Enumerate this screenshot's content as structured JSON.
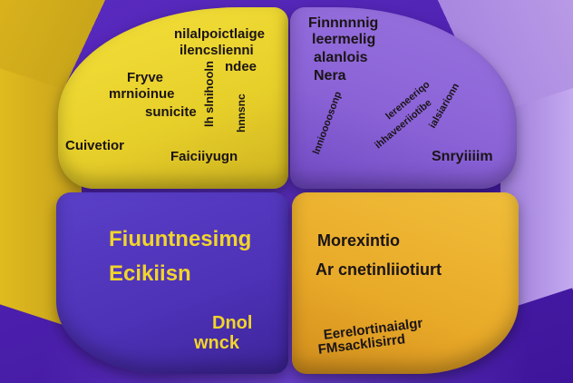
{
  "quadrants": {
    "top_left": {
      "color": "#eed732",
      "lines": {
        "a": "nilalpoictlaige",
        "b": "ilencslienni",
        "c": "ndee",
        "d": "Fryve",
        "e": "mrnioinue",
        "f": "sunicite",
        "g": "Cuivetior",
        "h": "Faiciiyugn",
        "v1": "lh slnihooln",
        "v2": "hnnsnc"
      }
    },
    "top_right": {
      "color": "#8d66d8",
      "lines": {
        "a": "Finnnnnig",
        "b": "leermelig",
        "c": "alanlois",
        "d": "Nera",
        "e": "Snryiiiim",
        "d1": "lnnioooosonp",
        "d2": "ihhaveeriiotibe",
        "d3": "lereneeriqo",
        "d4": "ialsiarionn"
      }
    },
    "bottom_left": {
      "color": "#4e33b8",
      "lines": {
        "a": "Fiuuntnesimg",
        "b": "Ecikiisn",
        "c": "Dnol",
        "d": "wnck"
      }
    },
    "bottom_right": {
      "color": "#eab02c",
      "lines": {
        "a": "Morexintio",
        "b": "Ar cnetinliiotiurt",
        "c": "Eerelortinaialgr",
        "d": "FMsacklisirrd"
      }
    }
  }
}
